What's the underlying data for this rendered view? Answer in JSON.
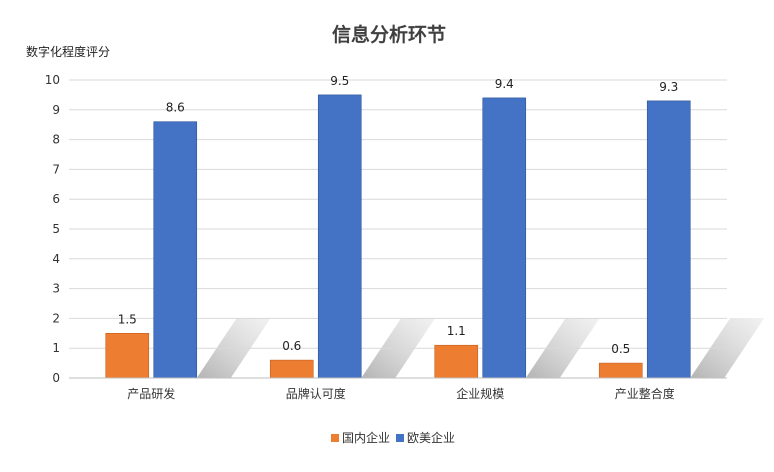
{
  "chart_data": {
    "type": "bar",
    "title": "信息分析环节",
    "ylabel": "数字化程度评分",
    "xlabel": "",
    "categories": [
      "产品研发",
      "品牌认可度",
      "企业规模",
      "产业整合度"
    ],
    "ylim": [
      0,
      10
    ],
    "yticks": [
      "0",
      "1",
      "2",
      "3",
      "4",
      "5",
      "6",
      "7",
      "8",
      "9",
      "10"
    ],
    "grid": true,
    "legend_position": "bottom",
    "series": [
      {
        "name": "国内企业",
        "color": "#ED7D31",
        "values": [
          1.5,
          0.6,
          1.1,
          0.5
        ],
        "labels": [
          "1.5",
          "0.6",
          "1.1",
          "0.5"
        ]
      },
      {
        "name": "欧美企业",
        "color": "#4472C4",
        "values": [
          8.6,
          9.5,
          9.4,
          9.3
        ],
        "labels": [
          "8.6",
          "9.5",
          "9.4",
          "9.3"
        ]
      }
    ]
  }
}
